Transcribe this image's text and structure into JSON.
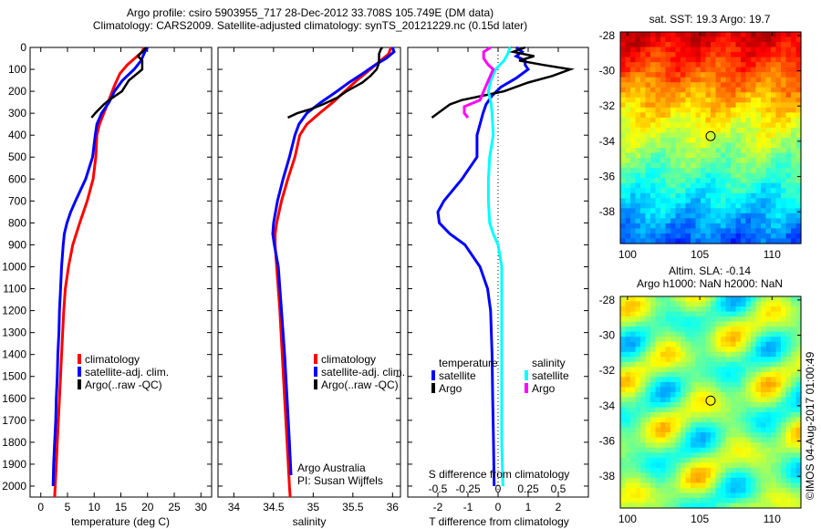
{
  "title": {
    "line1": "Argo profile: csiro 5903955_717 28-Dec-2012 33.708S 105.749E (DM data)",
    "line2": "Climatology: CARS2009. Satellite-adjusted climatology: synTS_20121229.nc (0.15d later)"
  },
  "colors": {
    "climatology": "#ff0000",
    "satellite": "#0000ff",
    "argo": "#000000",
    "sal_satellite": "#00ffff",
    "sal_argo": "#ff00ff"
  },
  "chart_data": [
    {
      "type": "line",
      "id": "temperature-profile",
      "xlabel": "temperature (deg C)",
      "ylabel": "",
      "xlim": [
        -2,
        32
      ],
      "ylim": [
        2050,
        0
      ],
      "xticks": [
        0,
        5,
        10,
        15,
        20,
        25,
        30
      ],
      "yticks": [
        0,
        100,
        200,
        300,
        400,
        500,
        600,
        700,
        800,
        900,
        1000,
        1100,
        1200,
        1300,
        1400,
        1500,
        1600,
        1700,
        1800,
        1900,
        2000
      ],
      "legend": [
        "climatology",
        "satellite-adj. clim.",
        "Argo(..raw -QC)"
      ],
      "series": [
        {
          "name": "climatology",
          "color_key": "climatology",
          "depth": [
            0,
            20,
            50,
            80,
            120,
            180,
            250,
            300,
            350,
            400,
            500,
            600,
            700,
            800,
            900,
            1000,
            1100,
            1200,
            1300,
            1400,
            1500,
            1600,
            1700,
            1800,
            1900,
            2000,
            2050
          ],
          "values": [
            19.3,
            19.0,
            17.6,
            16.2,
            14.8,
            13.7,
            12.6,
            11.8,
            11.0,
            10.5,
            10.3,
            9.8,
            8.7,
            7.3,
            6.0,
            5.2,
            4.6,
            4.3,
            4.1,
            3.9,
            3.7,
            3.5,
            3.3,
            3.1,
            2.9,
            2.7,
            2.6
          ]
        },
        {
          "name": "satellite-adj. clim.",
          "color_key": "satellite",
          "depth": [
            0,
            20,
            60,
            100,
            150,
            200,
            250,
            300,
            350,
            400,
            500,
            600,
            700,
            750,
            800,
            850,
            900,
            1000,
            1100,
            1200,
            1300,
            1400,
            1500,
            1600,
            1700,
            1800,
            1900,
            2000
          ],
          "values": [
            20.0,
            19.5,
            18.8,
            17.5,
            15.3,
            13.8,
            12.8,
            11.4,
            10.5,
            10.2,
            9.7,
            8.4,
            6.5,
            5.6,
            4.9,
            4.4,
            4.2,
            3.9,
            3.7,
            3.5,
            3.4,
            3.2,
            3.1,
            2.9,
            2.8,
            2.6,
            2.4,
            2.3
          ]
        },
        {
          "name": "Argo(..raw -QC)",
          "color_key": "argo",
          "depth": [
            0,
            20,
            40,
            60,
            100,
            110,
            150,
            200,
            240,
            260,
            280,
            300,
            320
          ],
          "values": [
            19.8,
            19.0,
            18.2,
            19.0,
            19.0,
            18.5,
            16.5,
            15.2,
            12.8,
            11.8,
            11.0,
            10.2,
            9.5
          ]
        }
      ]
    },
    {
      "type": "line",
      "id": "salinity-profile",
      "xlabel": "salinity",
      "xlim": [
        33.8,
        36.1
      ],
      "ylim": [
        2050,
        0
      ],
      "xticks": [
        34,
        34.5,
        35,
        35.5,
        36
      ],
      "legend": [
        "climatology",
        "satellite-adj. clim.",
        "Argo(..raw -QC)"
      ],
      "annotation": [
        "Argo Australia",
        "PI: Susan Wijffels"
      ],
      "series": [
        {
          "name": "climatology",
          "color_key": "climatology",
          "depth": [
            0,
            30,
            60,
            100,
            150,
            200,
            250,
            300,
            350,
            400,
            500,
            600,
            700,
            800,
            850,
            900,
            1000,
            1200,
            1400,
            1600,
            1800,
            2000,
            2050
          ],
          "values": [
            35.98,
            35.95,
            35.85,
            35.72,
            35.55,
            35.4,
            35.25,
            35.08,
            34.92,
            34.83,
            34.77,
            34.68,
            34.6,
            34.54,
            34.52,
            34.52,
            34.54,
            34.58,
            34.61,
            34.64,
            34.67,
            34.7,
            34.71
          ]
        },
        {
          "name": "satellite-adj. clim.",
          "color_key": "satellite",
          "depth": [
            0,
            20,
            50,
            80,
            120,
            160,
            200,
            250,
            300,
            350,
            400,
            500,
            600,
            700,
            800,
            850,
            900,
            1000,
            1200,
            1400,
            1600,
            1800,
            1950
          ],
          "values": [
            36.0,
            36.02,
            35.92,
            35.78,
            35.62,
            35.45,
            35.3,
            35.1,
            34.92,
            34.82,
            34.77,
            34.7,
            34.62,
            34.55,
            34.5,
            34.49,
            34.51,
            34.56,
            34.6,
            34.64,
            34.67,
            34.7,
            34.72
          ]
        },
        {
          "name": "Argo(..raw -QC)",
          "color_key": "argo",
          "depth": [
            0,
            10,
            30,
            60,
            80,
            100,
            130,
            160,
            200,
            230,
            260,
            280,
            300,
            320
          ],
          "values": [
            35.87,
            35.85,
            35.83,
            35.83,
            35.82,
            35.8,
            35.72,
            35.62,
            35.42,
            35.3,
            35.12,
            34.98,
            34.8,
            34.68
          ]
        }
      ]
    },
    {
      "type": "line",
      "id": "difference-profile",
      "xlabel": "T difference from climatology",
      "xlabel2": "S difference from climatology",
      "xlim": [
        -3,
        3
      ],
      "x2lim": [
        -0.75,
        0.75
      ],
      "ylim": [
        2050,
        0
      ],
      "xticks": [
        -2,
        -1,
        0,
        1,
        2
      ],
      "x2ticks": [
        -0.5,
        -0.25,
        0,
        0.25,
        0.5
      ],
      "x2ticklabels": [
        "-0.5",
        "-0.25",
        "0",
        "0.25",
        "0.5"
      ],
      "legend_temperature": {
        "title": "temperature",
        "items": [
          "satellite",
          "Argo"
        ]
      },
      "legend_salinity": {
        "title": "salinity",
        "items": [
          "satellite",
          "Argo"
        ]
      },
      "series": [
        {
          "name": "temperature satellite",
          "color_key": "satellite",
          "axis": "T",
          "depth": [
            0,
            20,
            40,
            60,
            80,
            100,
            140,
            180,
            220,
            260,
            300,
            400,
            500,
            600,
            700,
            750,
            800,
            850,
            900,
            1000,
            1100,
            1200,
            1400,
            1600,
            1800,
            2000
          ],
          "values": [
            0.6,
            0.8,
            0.6,
            0.9,
            0.9,
            1.0,
            0.6,
            0.1,
            -0.2,
            -0.4,
            -0.5,
            -0.7,
            -0.7,
            -1.2,
            -1.8,
            -2.0,
            -1.95,
            -1.6,
            -1.1,
            -0.6,
            -0.35,
            -0.25,
            -0.2,
            -0.18,
            -0.15,
            -0.13
          ]
        },
        {
          "name": "temperature Argo",
          "color_key": "argo",
          "axis": "T",
          "depth": [
            0,
            20,
            40,
            60,
            80,
            100,
            130,
            160,
            200,
            220,
            240,
            260,
            300,
            320
          ],
          "values": [
            0.9,
            0.5,
            1.2,
            0.7,
            1.5,
            2.4,
            1.8,
            1.0,
            0.2,
            -0.5,
            -1.2,
            -1.6,
            -2.0,
            -2.2
          ]
        },
        {
          "name": "salinity satellite",
          "color_key": "sal_satellite",
          "axis": "S",
          "depth": [
            0,
            30,
            60,
            100,
            150,
            200,
            250,
            300,
            400,
            500,
            600,
            700,
            800,
            850,
            900,
            1000,
            1200,
            1500,
            1800,
            2000
          ],
          "values": [
            0.1,
            0.08,
            0.05,
            -0.02,
            -0.06,
            -0.08,
            -0.06,
            -0.05,
            -0.04,
            -0.07,
            -0.08,
            -0.08,
            -0.07,
            -0.04,
            0.0,
            0.03,
            0.03,
            0.03,
            0.03,
            0.04
          ]
        },
        {
          "name": "salinity Argo",
          "color_key": "sal_argo",
          "axis": "S",
          "depth": [
            0,
            20,
            50,
            80,
            100,
            150,
            200,
            240,
            270,
            300,
            320
          ],
          "values": [
            -0.06,
            -0.12,
            -0.12,
            -0.08,
            -0.04,
            -0.08,
            -0.12,
            -0.15,
            -0.28,
            -0.28,
            -0.25
          ]
        }
      ]
    },
    {
      "type": "heatmap",
      "id": "sst-map",
      "title": "sat. SST: 19.3 Argo: 19.7",
      "xlim": [
        99.5,
        112
      ],
      "ylim": [
        -39.8,
        -27.8
      ],
      "xticks": [
        100,
        105,
        110
      ],
      "yticks": [
        -28,
        -30,
        -32,
        -34,
        -36,
        -38
      ],
      "marker": {
        "lon": 105.749,
        "lat": -33.708
      },
      "colorscale": "jet"
    },
    {
      "type": "heatmap",
      "id": "sla-map",
      "title_line1": "Altim. SLA: -0.14",
      "title_line2": "Argo h1000: NaN h2000: NaN",
      "xlim": [
        99.5,
        112
      ],
      "ylim": [
        -39.8,
        -27.8
      ],
      "xticks": [
        100,
        105,
        110
      ],
      "yticks": [
        -28,
        -30,
        -32,
        -34,
        -36,
        -38
      ],
      "marker": {
        "lon": 105.749,
        "lat": -33.708
      },
      "colorscale": "jet"
    }
  ],
  "credit": "©IMOS 04-Aug-2017 01:00:49"
}
